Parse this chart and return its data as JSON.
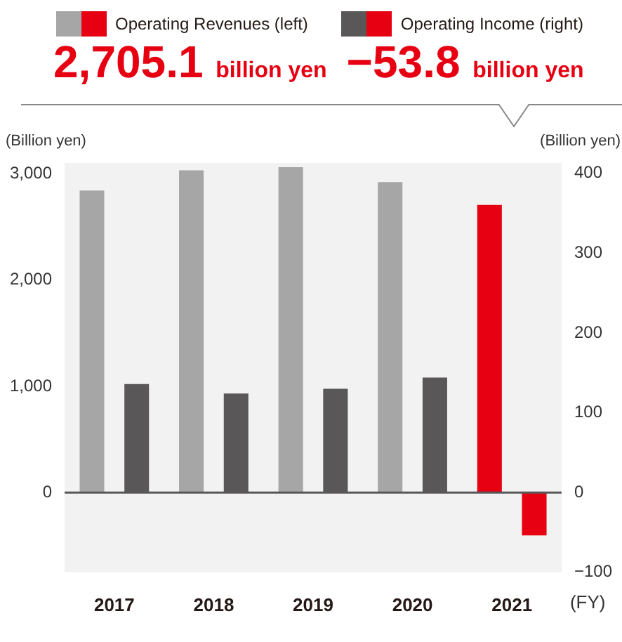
{
  "chart_data": {
    "type": "bar",
    "categories": [
      "2017",
      "2018",
      "2019",
      "2020",
      "2021"
    ],
    "series": [
      {
        "name": "Operating Revenues (left)",
        "colors": [
          "#a6a6a6",
          "#a6a6a6",
          "#a6a6a6",
          "#a6a6a6",
          "#e60012"
        ],
        "values": [
          2840,
          3030,
          3060,
          2920,
          2705.1
        ]
      },
      {
        "name": "Operating Income (right)",
        "axis": "y2",
        "colors": [
          "#595757",
          "#595757",
          "#595757",
          "#595757",
          "#e60012"
        ],
        "values": [
          136,
          124,
          130,
          144,
          -53.8
        ]
      }
    ],
    "ylim": [
      -750,
      3100
    ],
    "yticks": [
      0,
      {
        "value": 1000,
        "label": "1,000"
      },
      {
        "value": 2000,
        "label": "2,000"
      },
      {
        "value": 3000,
        "label": "3,000"
      }
    ],
    "y2lim": [
      -100,
      413
    ],
    "y2ticks": [
      {
        "value": -100,
        "label": "−100"
      },
      0,
      100,
      200,
      300,
      400
    ],
    "ylabel": "(Billion yen)",
    "y2label": "(Billion yen)",
    "xlabel": "(FY)",
    "annotations": [
      "2,705.1 billion yen",
      "−53.8 billion yen"
    ],
    "ref_lines": [
      {
        "axis": "y",
        "value": 0,
        "color": "#595757"
      }
    ],
    "legend": "top",
    "grid": false
  }
}
